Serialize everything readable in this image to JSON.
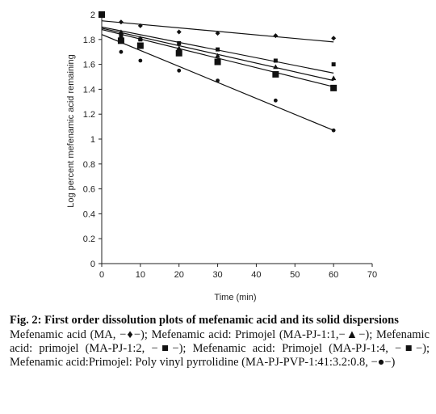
{
  "chart_data": {
    "type": "scatter",
    "xlabel": "Time (min)",
    "ylabel": "Log percent mefenamic acid remaining",
    "xlim": [
      0,
      70
    ],
    "ylim": [
      0,
      2
    ],
    "xticks": [
      "0",
      "10",
      "20",
      "30",
      "40",
      "50",
      "60",
      "70"
    ],
    "yticks": [
      "0",
      "0.2",
      "0.4",
      "0.6",
      "0.8",
      "1",
      "1.2",
      "1.4",
      "1.6",
      "1.8",
      "2"
    ],
    "grid": false,
    "series": [
      {
        "marker": "diamond",
        "size": "small",
        "points": [
          [
            0,
            2.0
          ],
          [
            5,
            1.94
          ],
          [
            10,
            1.91
          ],
          [
            20,
            1.86
          ],
          [
            30,
            1.85
          ],
          [
            45,
            1.83
          ],
          [
            60,
            1.81
          ]
        ],
        "trend": [
          [
            0,
            1.95
          ],
          [
            60,
            1.78
          ]
        ]
      },
      {
        "marker": "triangle",
        "size": "small",
        "points": [
          [
            0,
            2.0
          ],
          [
            5,
            1.86
          ],
          [
            10,
            1.81
          ],
          [
            20,
            1.73
          ],
          [
            30,
            1.67
          ],
          [
            45,
            1.58
          ],
          [
            60,
            1.49
          ]
        ],
        "trend": [
          [
            0,
            1.89
          ],
          [
            60,
            1.47
          ]
        ]
      },
      {
        "marker": "square",
        "size": "small",
        "points": [
          [
            0,
            2.0
          ],
          [
            5,
            1.83
          ],
          [
            10,
            1.8
          ],
          [
            20,
            1.77
          ],
          [
            30,
            1.72
          ],
          [
            45,
            1.63
          ],
          [
            60,
            1.6
          ]
        ],
        "trend": [
          [
            0,
            1.9
          ],
          [
            60,
            1.53
          ]
        ]
      },
      {
        "marker": "square",
        "size": "large",
        "points": [
          [
            0,
            2.0
          ],
          [
            5,
            1.79
          ],
          [
            10,
            1.75
          ],
          [
            20,
            1.69
          ],
          [
            30,
            1.62
          ],
          [
            45,
            1.52
          ],
          [
            60,
            1.41
          ]
        ],
        "trend": [
          [
            0,
            1.88
          ],
          [
            60,
            1.42
          ]
        ]
      },
      {
        "marker": "circle",
        "size": "small",
        "points": [
          [
            0,
            2.0
          ],
          [
            5,
            1.7
          ],
          [
            10,
            1.63
          ],
          [
            20,
            1.55
          ],
          [
            30,
            1.47
          ],
          [
            45,
            1.31
          ],
          [
            60,
            1.07
          ]
        ],
        "trend": [
          [
            0,
            1.84
          ],
          [
            60,
            1.07
          ]
        ]
      }
    ]
  },
  "caption": {
    "title": "Fig. 2: First order dissolution plots of mefenamic acid and its solid dispersions",
    "body": "Mefenamic acid (MA, −♦−); Mefenamic acid: Primojel (MA-PJ-1:1,−▲−); Mefenamic acid: primojel (MA-PJ-1:2, −■−); Mefenamic acid: Primojel (MA-PJ-1:4, −■−); Mefenamic acid:Primojel: Poly vinyl pyrrolidine (MA-PJ-PVP-1:41:3.2:0.8, −●−)"
  }
}
